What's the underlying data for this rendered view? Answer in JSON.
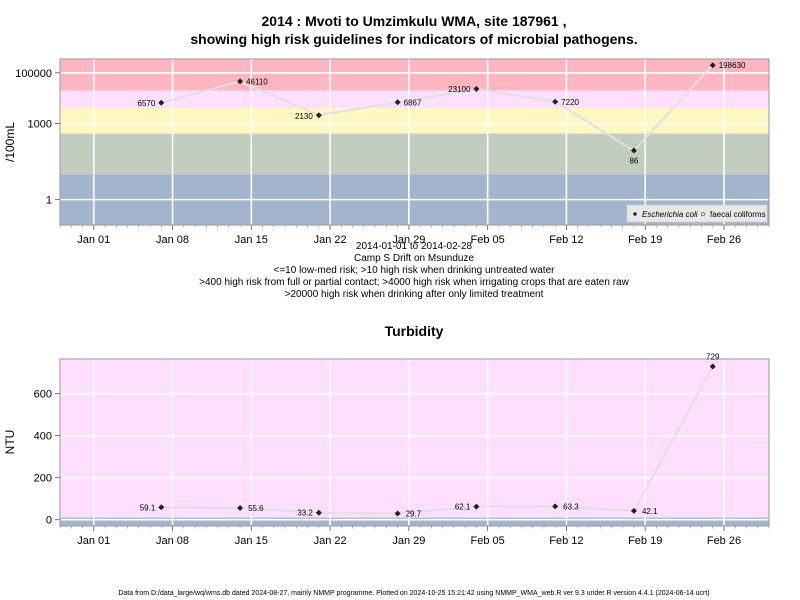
{
  "footer": "Data from D:/data_large/wq/wms.db dated 2024-08-27, mainly NMMP programme. Plotted on 2024-10-25 15:21:42 using NMMP_WMA_web.R ver 9.3 under R version 4.4.1 (2024-06-14 ucrt)",
  "colors": {
    "risk_very_high": "#ffb6c1",
    "risk_high": "#ffdfff",
    "risk_medium_high": "#fff7c0",
    "risk_medium": "#c2cdc0",
    "risk_low": "#a2b5cd",
    "turbidity_band": "#ffdfff",
    "turbidity_low_band": "#a2b5cd",
    "line": "#e0e0e0",
    "marker": "#222222",
    "grid": "#ffffff"
  },
  "chart_data": [
    {
      "type": "line",
      "title_line1": "2014 : Mvoti to Umzimkulu WMA, site 187961 ,",
      "title_line2": "showing high risk guidelines for indicators of microbial pathogens.",
      "ylabel": "/100mL",
      "yscale": "log",
      "ylim": [
        0.1,
        350000
      ],
      "x_tick_labels": [
        "Jan 01",
        "Jan 08",
        "Jan 15",
        "Jan 22",
        "Jan 29",
        "Feb 05",
        "Feb 12",
        "Feb 19",
        "Feb 26"
      ],
      "x_tick_dates": [
        "2014-01-01",
        "2014-01-08",
        "2014-01-15",
        "2014-01-22",
        "2014-01-29",
        "2014-02-05",
        "2014-02-12",
        "2014-02-19",
        "2014-02-26"
      ],
      "xlim": [
        "2013-12-29",
        "2014-03-02"
      ],
      "y_ticks": [
        1,
        1000,
        100000
      ],
      "y_tick_labels": [
        "1",
        "1000",
        "100000"
      ],
      "grid": true,
      "risk_bands": [
        {
          "from": 20000,
          "to": 350000,
          "color_key": "risk_very_high"
        },
        {
          "from": 4000,
          "to": 20000,
          "color_key": "risk_high"
        },
        {
          "from": 400,
          "to": 4000,
          "color_key": "risk_medium_high"
        },
        {
          "from": 10,
          "to": 400,
          "color_key": "risk_medium"
        },
        {
          "from": 0.1,
          "to": 10,
          "color_key": "risk_low"
        }
      ],
      "series": [
        {
          "name": "Escherichia coli",
          "x": [
            "2014-01-07",
            "2014-01-14",
            "2014-01-21",
            "2014-01-28",
            "2014-02-04",
            "2014-02-11",
            "2014-02-18",
            "2014-02-25"
          ],
          "y": [
            6570,
            46110,
            2130,
            6867,
            23100,
            7220,
            86,
            198630
          ],
          "labels": [
            "6570",
            "46110",
            "2130",
            "6867",
            "23100",
            "7220",
            "86",
            "198630"
          ]
        }
      ],
      "legend": {
        "position": "bottom-right",
        "entries": [
          "Escherichia coli",
          "faecal coliforms"
        ]
      },
      "caption_lines": [
        "2014-01-01 to 2014-02-28",
        "Camp S Drift on Msunduze",
        "<=10 low-med risk; >10 high risk when drinking untreated water",
        ">400 high risk from full or partial contact; >4000 high risk when irrigating crops that are eaten raw",
        ">20000 high risk when drinking after only limited treatment"
      ]
    },
    {
      "type": "line",
      "title": "Turbidity",
      "ylabel": "NTU",
      "ylim": [
        -30,
        765
      ],
      "y_ticks": [
        0,
        200,
        400,
        600
      ],
      "y_tick_labels": [
        "0",
        "200",
        "400",
        "600"
      ],
      "x_tick_labels": [
        "Jan 01",
        "Jan 08",
        "Jan 15",
        "Jan 22",
        "Jan 29",
        "Feb 05",
        "Feb 12",
        "Feb 19",
        "Feb 26"
      ],
      "x_tick_dates": [
        "2014-01-01",
        "2014-01-08",
        "2014-01-15",
        "2014-01-22",
        "2014-01-29",
        "2014-02-05",
        "2014-02-12",
        "2014-02-19",
        "2014-02-26"
      ],
      "xlim": [
        "2013-12-29",
        "2014-03-02"
      ],
      "grid": true,
      "bands": [
        {
          "from": 10,
          "to": 765,
          "color_key": "turbidity_band"
        },
        {
          "from": -30,
          "to": 10,
          "color_key": "turbidity_low_band"
        }
      ],
      "series": [
        {
          "x": [
            "2014-01-07",
            "2014-01-14",
            "2014-01-21",
            "2014-01-28",
            "2014-02-04",
            "2014-02-11",
            "2014-02-18",
            "2014-02-25"
          ],
          "y": [
            59.1,
            55.6,
            33.2,
            29.7,
            62.1,
            63.3,
            42.1,
            729
          ],
          "labels": [
            "59.1",
            "55.6",
            "33.2",
            "29.7",
            "62.1",
            "63.3",
            "42.1",
            "729"
          ]
        }
      ]
    }
  ]
}
